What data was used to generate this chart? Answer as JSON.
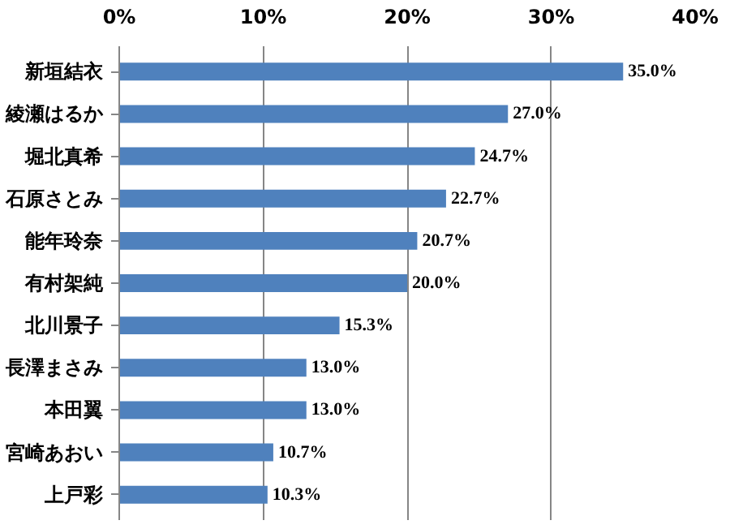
{
  "chart_data": {
    "type": "bar",
    "orientation": "horizontal",
    "categories": [
      "新垣結衣",
      "綾瀬はるか",
      "堀北真希",
      "石原さとみ",
      "能年玲奈",
      "有村架純",
      "北川景子",
      "長澤まさみ",
      "本田翼",
      "宮崎あおい",
      "上戸彩"
    ],
    "values": [
      35.0,
      27.0,
      24.7,
      22.7,
      20.7,
      20.0,
      15.3,
      13.0,
      13.0,
      10.7,
      10.3
    ],
    "value_labels": [
      "35.0%",
      "27.0%",
      "24.7%",
      "22.7%",
      "20.7%",
      "20.0%",
      "15.3%",
      "13.0%",
      "13.0%",
      "10.7%",
      "10.3%"
    ],
    "color": "#4f81bd",
    "xlim": [
      0,
      40
    ],
    "xticks": [
      {
        "value": 0,
        "label": "0%"
      },
      {
        "value": 10,
        "label": "10%"
      },
      {
        "value": 20,
        "label": "20%"
      },
      {
        "value": 30,
        "label": "30%"
      },
      {
        "value": 40,
        "label": "40%"
      }
    ],
    "grid": "x"
  }
}
